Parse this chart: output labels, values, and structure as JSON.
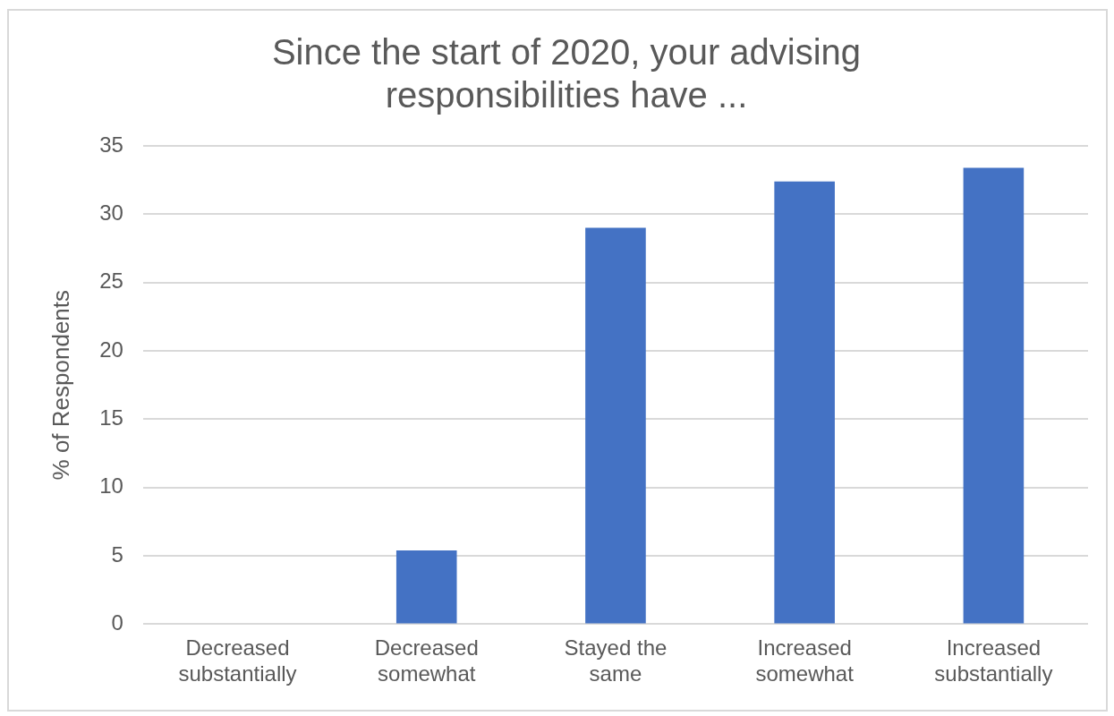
{
  "chart_data": {
    "type": "bar",
    "title": "Since the start of 2020, your advising responsibilities have ...",
    "ylabel": "% of Respondents",
    "categories": [
      "Decreased substantially",
      "Decreased somewhat",
      "Stayed the same",
      "Increased somewhat",
      "Increased substantially"
    ],
    "values": [
      0,
      5.4,
      29,
      32.4,
      33.4
    ],
    "color": "#4472c4",
    "ylim": [
      0,
      35
    ],
    "yticks": [
      0,
      5,
      10,
      15,
      20,
      25,
      30,
      35
    ],
    "grid": "y",
    "legend": false
  }
}
